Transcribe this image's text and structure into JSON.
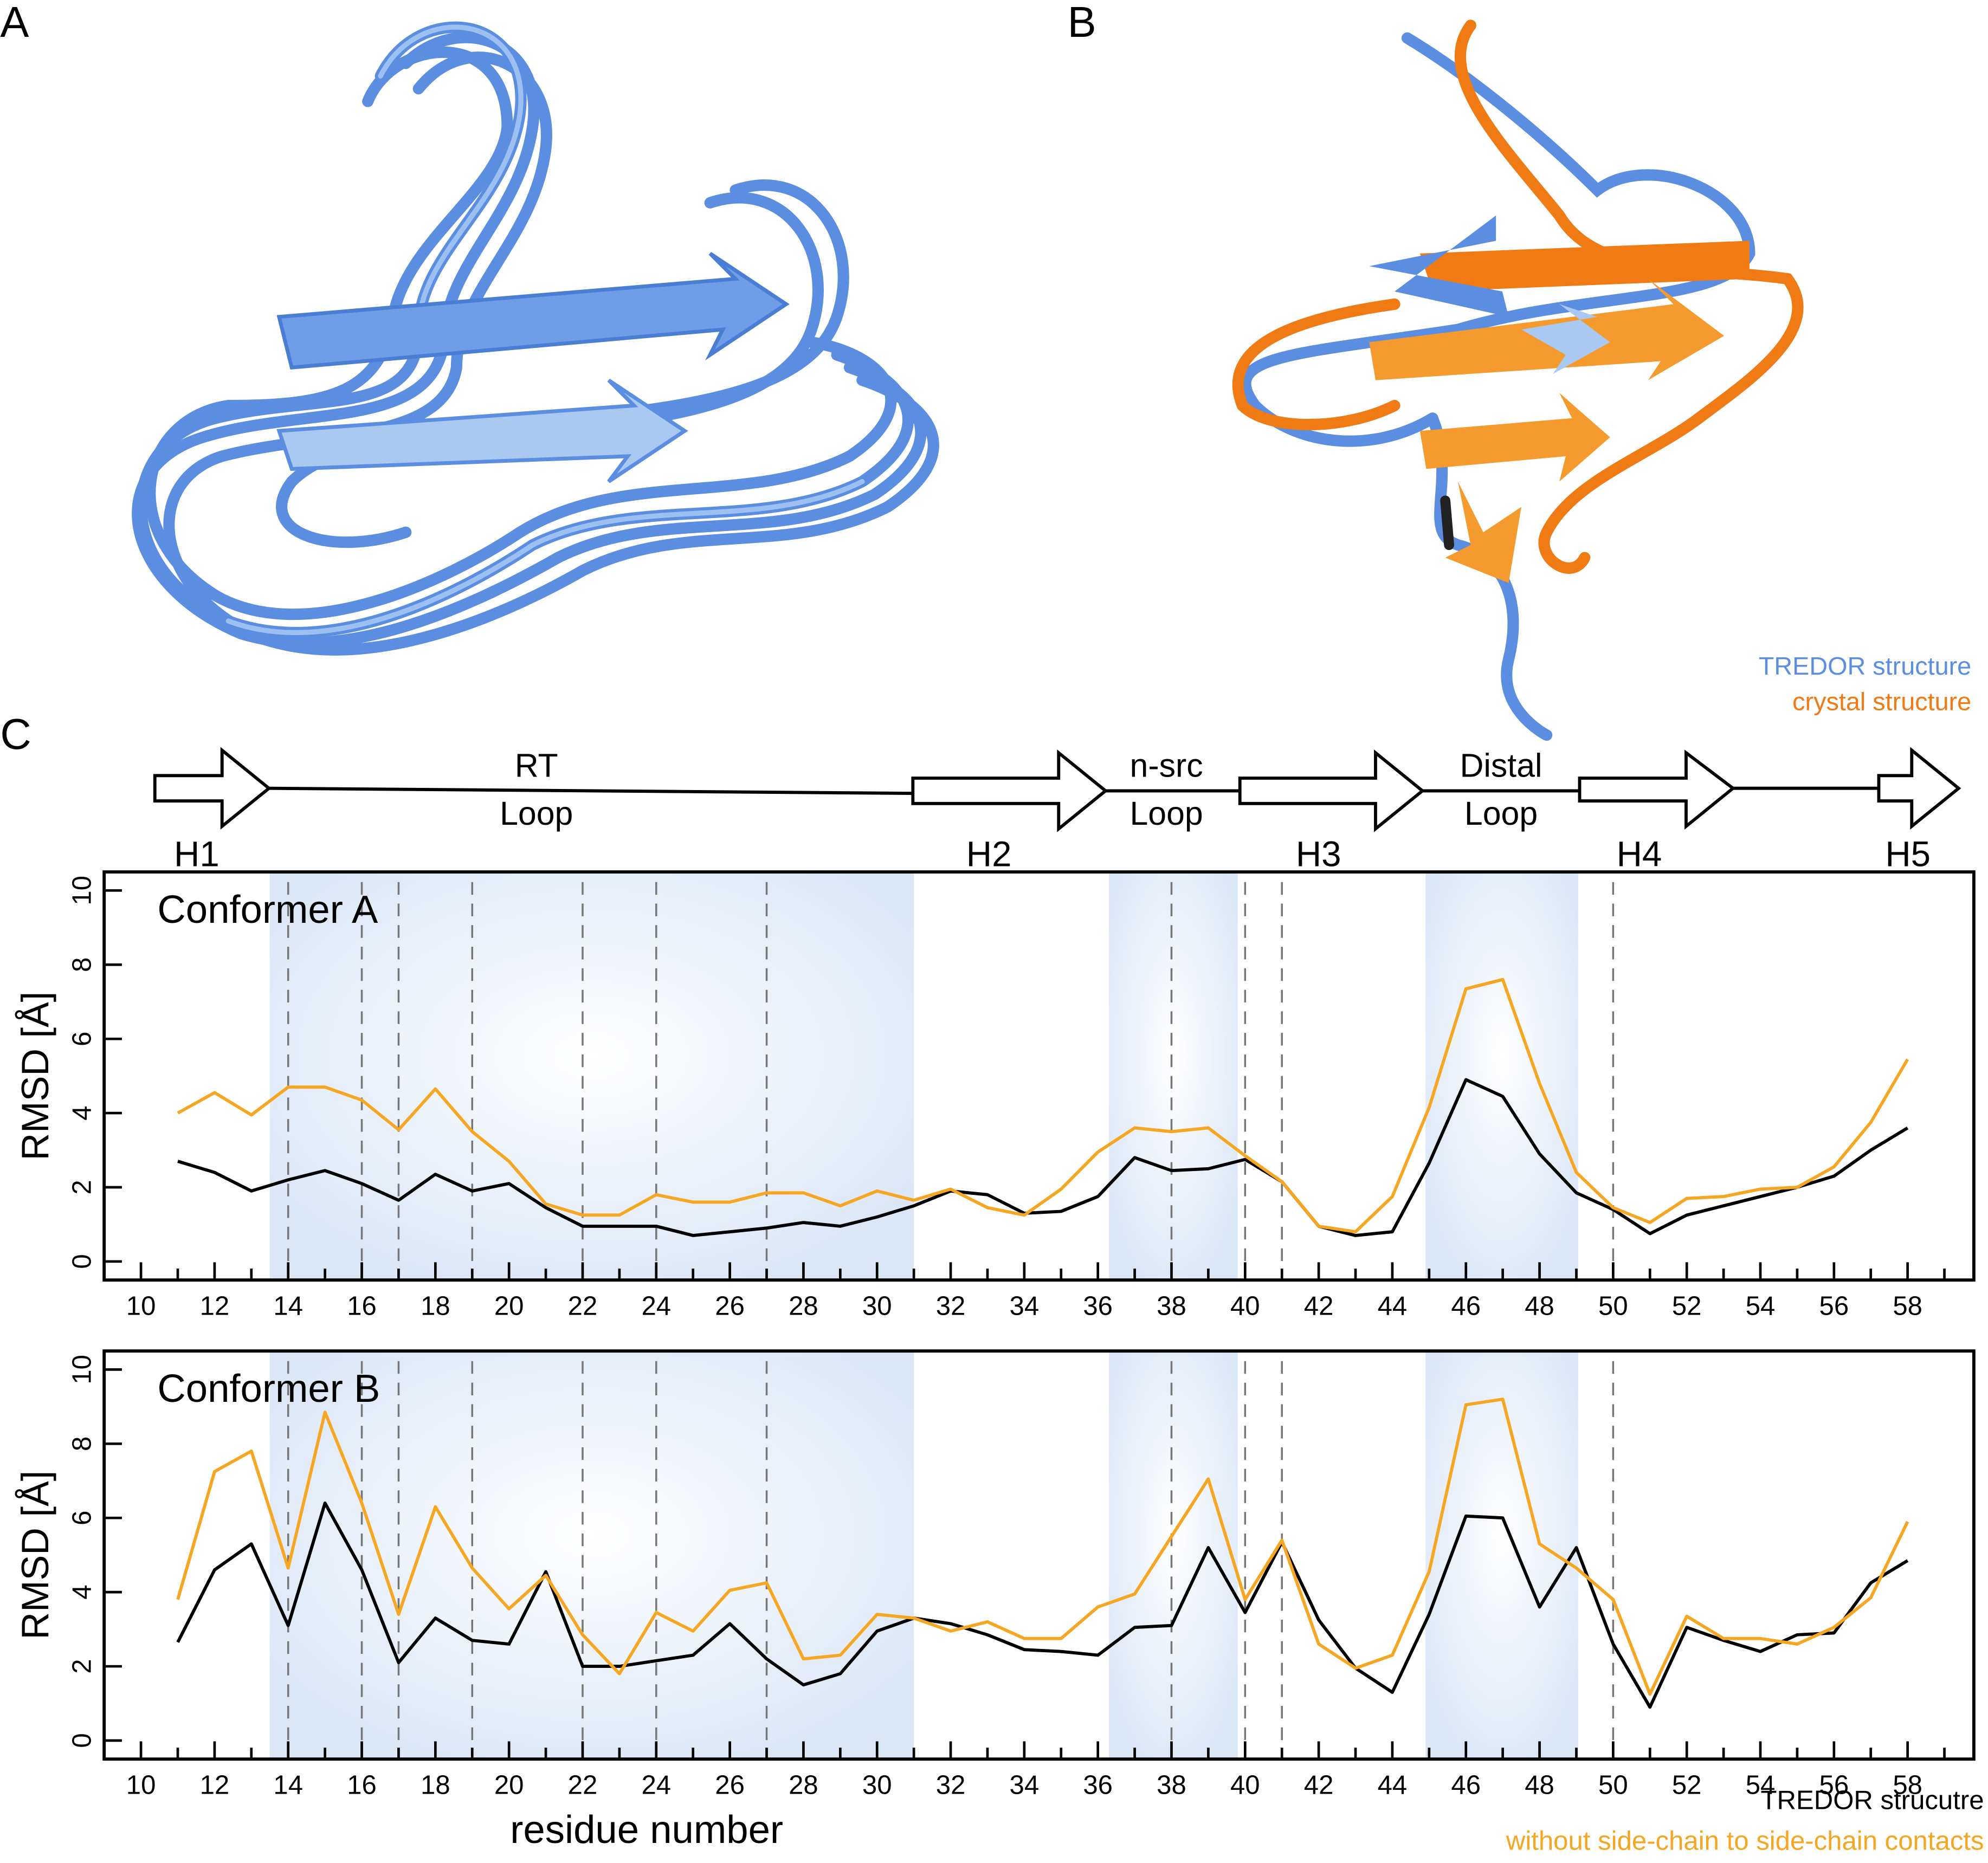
{
  "panels": {
    "a": "A",
    "b": "B",
    "c": "C"
  },
  "structure_legend": {
    "tredor": "TREDOR structure",
    "crystal": "crystal structure"
  },
  "topology": {
    "strands": [
      "H1",
      "H2",
      "H3",
      "H4",
      "H5"
    ],
    "loops": [
      [
        "RT",
        "Loop"
      ],
      [
        "n-src",
        "Loop"
      ],
      [
        "Distal",
        "Loop"
      ]
    ]
  },
  "chart_data": [
    {
      "type": "line",
      "title": "Conformer A",
      "y_label": "RMSD [Å]",
      "x": [
        11,
        12,
        13,
        14,
        15,
        16,
        17,
        18,
        19,
        20,
        21,
        22,
        23,
        24,
        25,
        26,
        27,
        28,
        29,
        30,
        31,
        32,
        33,
        34,
        35,
        36,
        37,
        38,
        39,
        40,
        41,
        42,
        43,
        44,
        45,
        46,
        47,
        48,
        49,
        50,
        51,
        52,
        53,
        54,
        55,
        56,
        57,
        58
      ],
      "series": [
        {
          "color": "#000000",
          "values": [
            2.7,
            2.4,
            1.9,
            2.2,
            2.45,
            2.1,
            1.65,
            2.35,
            1.9,
            2.1,
            1.45,
            0.95,
            0.95,
            0.95,
            0.7,
            0.8,
            0.9,
            1.05,
            0.95,
            1.2,
            1.5,
            1.9,
            1.8,
            1.3,
            1.35,
            1.75,
            2.8,
            2.45,
            2.5,
            2.75,
            2.15,
            0.95,
            0.7,
            0.8,
            2.65,
            4.9,
            4.45,
            2.9,
            1.85,
            1.4,
            0.75,
            1.25,
            1.5,
            1.75,
            2.0,
            2.3,
            3.0,
            3.6
          ]
        },
        {
          "color": "#f5a623",
          "values": [
            4.0,
            4.55,
            3.95,
            4.7,
            4.7,
            4.35,
            3.55,
            4.65,
            3.5,
            2.7,
            1.55,
            1.25,
            1.25,
            1.8,
            1.6,
            1.6,
            1.85,
            1.85,
            1.5,
            1.9,
            1.65,
            1.95,
            1.45,
            1.25,
            1.95,
            2.95,
            3.6,
            3.5,
            3.6,
            2.85,
            2.15,
            0.95,
            0.8,
            1.75,
            4.15,
            7.35,
            7.6,
            4.8,
            2.4,
            1.45,
            1.05,
            1.7,
            1.75,
            1.95,
            2.0,
            2.55,
            3.75,
            5.45
          ]
        }
      ],
      "regions": [
        [
          13.5,
          31
        ],
        [
          36.3,
          39.8
        ],
        [
          44.9,
          49.05
        ]
      ],
      "markers": [
        14,
        16,
        17,
        19,
        22,
        24,
        27,
        38,
        40,
        41,
        50
      ],
      "xlim": [
        9,
        59.8
      ],
      "ylim": [
        -0.5,
        10.5
      ],
      "xticks": [
        10,
        12,
        14,
        16,
        18,
        20,
        22,
        24,
        26,
        28,
        30,
        32,
        34,
        36,
        38,
        40,
        42,
        44,
        46,
        48,
        50,
        52,
        54,
        56,
        58
      ],
      "xticks_minor": [
        11,
        13,
        15,
        17,
        19,
        21,
        23,
        25,
        27,
        29,
        31,
        33,
        35,
        37,
        39,
        41,
        43,
        45,
        47,
        49,
        51,
        53,
        55,
        57,
        59
      ],
      "yticks": [
        0,
        2,
        4,
        6,
        8,
        10
      ]
    },
    {
      "type": "line",
      "title": "Conformer B",
      "y_label": "RMSD [Å]",
      "x_label": "residue number",
      "x": [
        11,
        12,
        13,
        14,
        15,
        16,
        17,
        18,
        19,
        20,
        21,
        22,
        23,
        24,
        25,
        26,
        27,
        28,
        29,
        30,
        31,
        32,
        33,
        34,
        35,
        36,
        37,
        38,
        39,
        40,
        41,
        42,
        43,
        44,
        45,
        46,
        47,
        48,
        49,
        50,
        51,
        52,
        53,
        54,
        55,
        56,
        57,
        58
      ],
      "series": [
        {
          "name": "TREDOR strucutre",
          "color": "#000000",
          "values": [
            2.65,
            4.6,
            5.3,
            3.1,
            6.4,
            4.6,
            2.1,
            3.3,
            2.7,
            2.6,
            4.55,
            2.0,
            2.0,
            2.15,
            2.3,
            3.15,
            2.2,
            1.5,
            1.8,
            2.95,
            3.3,
            3.15,
            2.85,
            2.45,
            2.4,
            2.3,
            3.05,
            3.1,
            5.2,
            3.45,
            5.35,
            3.25,
            1.95,
            1.3,
            3.4,
            6.05,
            6.0,
            3.6,
            5.2,
            2.6,
            0.9,
            3.05,
            2.7,
            2.4,
            2.85,
            2.9,
            4.25,
            4.85
          ]
        },
        {
          "name": "without side-chain to side-chain contacts",
          "color": "#f5a623",
          "values": [
            3.8,
            7.25,
            7.8,
            4.65,
            8.85,
            6.4,
            3.4,
            6.3,
            4.65,
            3.55,
            4.45,
            2.85,
            1.8,
            3.45,
            2.95,
            4.05,
            4.25,
            2.2,
            2.3,
            3.4,
            3.3,
            2.95,
            3.2,
            2.75,
            2.75,
            3.6,
            3.95,
            5.5,
            7.05,
            3.8,
            5.4,
            2.6,
            1.95,
            2.3,
            4.55,
            9.05,
            9.2,
            5.3,
            4.65,
            3.8,
            1.25,
            3.35,
            2.75,
            2.75,
            2.6,
            3.05,
            3.85,
            5.9
          ]
        }
      ],
      "regions": [
        [
          13.5,
          31
        ],
        [
          36.3,
          39.8
        ],
        [
          44.9,
          49.05
        ]
      ],
      "markers": [
        14,
        16,
        17,
        19,
        22,
        24,
        27,
        38,
        40,
        41,
        50
      ],
      "xlim": [
        9,
        59.8
      ],
      "ylim": [
        -0.5,
        10.5
      ],
      "xticks": [
        10,
        12,
        14,
        16,
        18,
        20,
        22,
        24,
        26,
        28,
        30,
        32,
        34,
        36,
        38,
        40,
        42,
        44,
        46,
        48,
        50,
        52,
        54,
        56,
        58
      ],
      "xticks_minor": [
        11,
        13,
        15,
        17,
        19,
        21,
        23,
        25,
        27,
        29,
        31,
        33,
        35,
        37,
        39,
        41,
        43,
        45,
        47,
        49,
        51,
        53,
        55,
        57,
        59
      ],
      "yticks": [
        0,
        2,
        4,
        6,
        8,
        10
      ]
    }
  ]
}
